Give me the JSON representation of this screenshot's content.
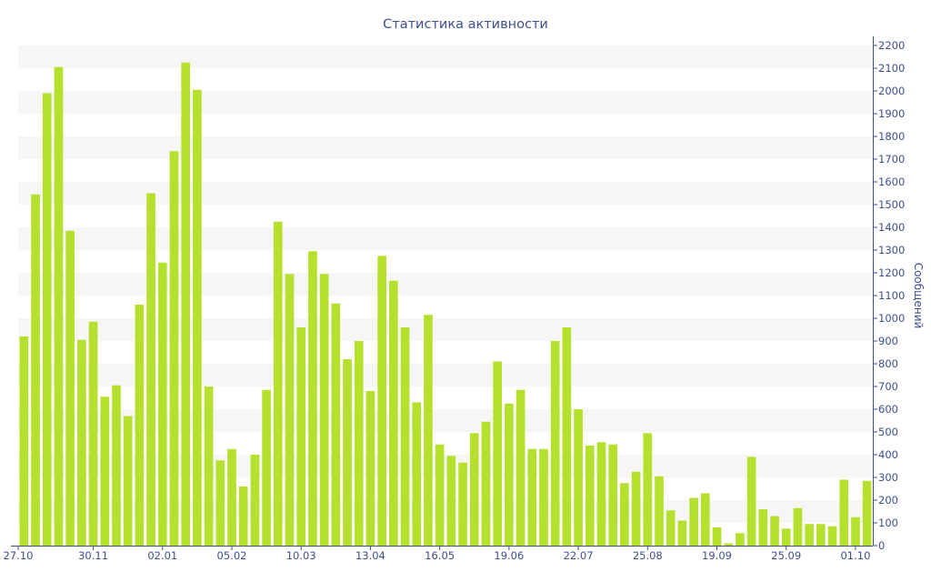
{
  "colors": {
    "bar": "#b5e02e",
    "stripe": "#f6f6f6",
    "axis": "#3d4f8e",
    "text": "#3d4f8e"
  },
  "chart_data": {
    "type": "bar",
    "title": "Статистика активности",
    "ylabel": "Сообщений",
    "xlabel": "",
    "ylim": [
      0,
      2200
    ],
    "y_ticks": [
      0,
      100,
      200,
      300,
      400,
      500,
      600,
      700,
      800,
      900,
      1000,
      1100,
      1200,
      1300,
      1400,
      1500,
      1600,
      1700,
      1800,
      1900,
      2000,
      2100,
      2200
    ],
    "y_axis_position": "right",
    "grid": "alternating horizontal bands",
    "x_tick_labels": [
      {
        "label": "27.10",
        "index": 0
      },
      {
        "label": "30.11",
        "index": 6
      },
      {
        "label": "02.01",
        "index": 12
      },
      {
        "label": "05.02",
        "index": 18
      },
      {
        "label": "10.03",
        "index": 24
      },
      {
        "label": "13.04",
        "index": 30
      },
      {
        "label": "16.05",
        "index": 36
      },
      {
        "label": "19.06",
        "index": 42
      },
      {
        "label": "22.07",
        "index": 48
      },
      {
        "label": "25.08",
        "index": 54
      },
      {
        "label": "19.09",
        "index": 60
      },
      {
        "label": "25.09",
        "index": 66
      },
      {
        "label": "01.10",
        "index": 72
      }
    ],
    "series": [
      {
        "values": [
          920,
          1545,
          1990,
          2105,
          1385,
          905,
          985,
          655,
          705,
          570,
          1060,
          1550,
          1245,
          1735,
          2125,
          2005,
          700,
          375,
          425,
          260,
          400,
          685,
          1425,
          1195,
          960,
          1295,
          1195,
          1065,
          820,
          900,
          680,
          1275,
          1165,
          960,
          630,
          1015,
          445,
          395,
          365,
          495,
          545,
          810,
          625,
          685,
          425,
          425,
          900,
          960,
          600,
          440,
          455,
          445,
          275,
          325,
          495,
          305,
          155,
          110,
          210,
          230,
          80,
          10,
          55,
          390,
          160,
          130,
          75,
          165,
          95,
          95,
          85,
          290,
          125,
          285
        ]
      }
    ]
  }
}
